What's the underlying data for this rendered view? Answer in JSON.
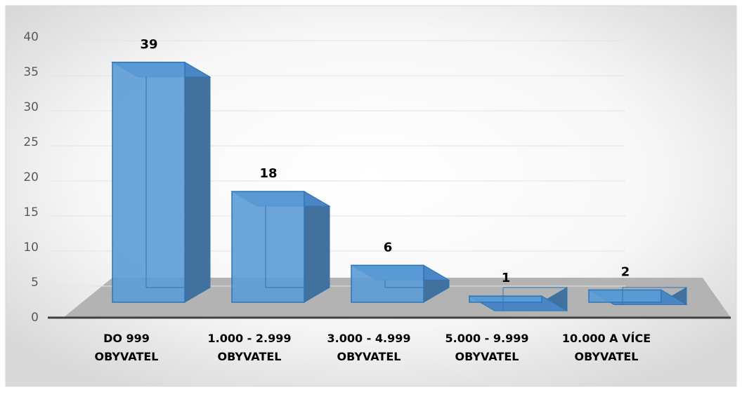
{
  "chart_data": {
    "type": "bar3d",
    "categories": [
      "DO 999 OBYVATEL",
      "1.000 - 2.999 OBYVATEL",
      "3.000 - 4.999 OBYVATEL",
      "5.000 - 9.999 OBYVATEL",
      "10.000 A VÍCE OBYVATEL"
    ],
    "values": [
      39,
      18,
      6,
      1,
      2
    ],
    "color": "#5b9bd5",
    "ylim": [
      0,
      40
    ],
    "yticks": [
      0,
      5,
      10,
      15,
      20,
      25,
      30,
      35,
      40
    ],
    "grid": true
  }
}
